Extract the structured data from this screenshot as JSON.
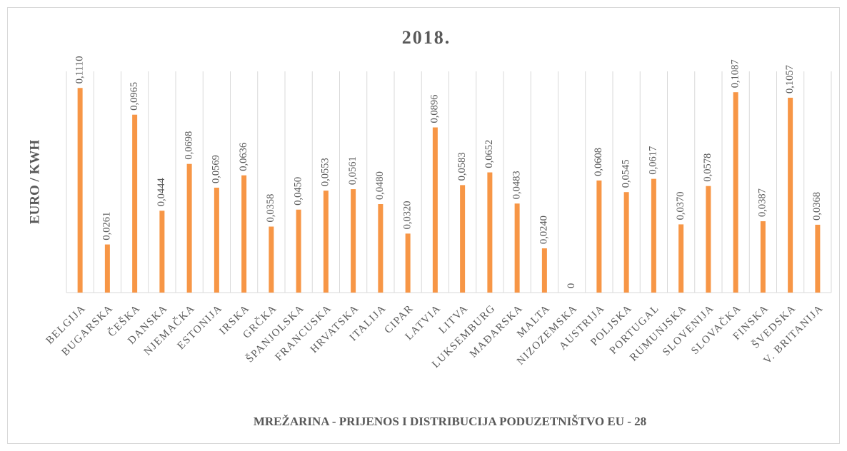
{
  "chart_data": {
    "type": "bar",
    "title": "2018.",
    "y_label": "EURO / KWH",
    "x_label": "MREŽARINA - PRIJENOS I DISTRIBUCIJA PODUZETNIŠTVO EU - 28",
    "categories": [
      "BELGIJA",
      "BUGARSKA",
      "ČEŠKA",
      "DANSKA",
      "NJEMAČKA",
      "ESTONIJA",
      "IRSKA",
      "GRČKA",
      "ŠPANJOLSKA",
      "FRANCUSKA",
      "HRVATSKA",
      "ITALIJA",
      "CIPAR",
      "LATVIA",
      "LITVA",
      "LUKSEMBURG",
      "MAĐARSKA",
      "MALTA",
      "NIZOZEMSKA",
      "AUSTRIJA",
      "POLJSKA",
      "PORTUGAL",
      "RUMUNJSKA",
      "SLOVENIJA",
      "SLOVAČKA",
      "FINSKA",
      "ŠVEDSKA",
      "V. BRITANIJA"
    ],
    "values": [
      0.111,
      0.0261,
      0.0965,
      0.0444,
      0.0698,
      0.0569,
      0.0636,
      0.0358,
      0.045,
      0.0553,
      0.0561,
      0.048,
      0.032,
      0.0896,
      0.0583,
      0.0652,
      0.0483,
      0.024,
      0,
      0.0608,
      0.0545,
      0.0617,
      0.037,
      0.0578,
      0.1087,
      0.0387,
      0.1057,
      0.0368
    ],
    "value_labels": [
      "0,1110",
      "0,0261",
      "0,0965",
      "0,0444",
      "0,0698",
      "0,0569",
      "0,0636",
      "0,0358",
      "0,0450",
      "0,0553",
      "0,0561",
      "0,0480",
      "0,0320",
      "0,0896",
      "0,0583",
      "0,0652",
      "0,0483",
      "0,0240",
      "0",
      "0,0608",
      "0,0545",
      "0,0617",
      "0,0370",
      "0,0578",
      "0,1087",
      "0,0387",
      "0,1057",
      "0,0368"
    ],
    "color": "#f79646",
    "ylim": [
      0,
      0.12
    ]
  }
}
